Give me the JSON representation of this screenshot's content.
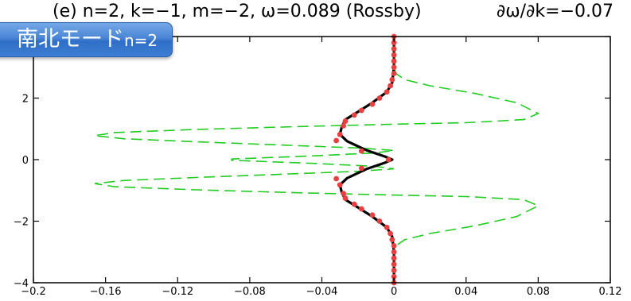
{
  "chart_data": {
    "type": "line",
    "title_left": "(e) n=2, k=−1, m=−2, ω=0.089 (Rossby)",
    "title_right": "∂ω/∂k=−0.07",
    "xlim": [
      -0.2,
      0.12
    ],
    "ylim": [
      -4,
      4
    ],
    "x_ticks": [
      -0.2,
      -0.16,
      -0.12,
      -0.08,
      -0.04,
      0,
      0.04,
      0.08,
      0.12
    ],
    "x_tick_labels": [
      "−0.2",
      "−0.16",
      "−0.12",
      "−0.08",
      "−0.04",
      "0",
      "0.04",
      "0.08",
      "0.12"
    ],
    "y_ticks": [
      -4,
      -2,
      0,
      2,
      4
    ],
    "y_tick_labels": [
      "−4",
      "−2",
      "0",
      "2",
      "4"
    ],
    "grid": false,
    "series": [
      {
        "style": "green-dashed",
        "color": "#22cc22",
        "points": [
          [
            0,
            4.0
          ],
          [
            0,
            3.4
          ],
          [
            0,
            3.0
          ],
          [
            0.001,
            2.8
          ],
          [
            0.006,
            2.6
          ],
          [
            0.02,
            2.4
          ],
          [
            0.045,
            2.15
          ],
          [
            0.068,
            1.85
          ],
          [
            0.08,
            1.5
          ],
          [
            0.072,
            1.3
          ],
          [
            0.04,
            1.2
          ],
          [
            0.0,
            1.15
          ],
          [
            -0.05,
            1.08
          ],
          [
            -0.11,
            0.98
          ],
          [
            -0.155,
            0.88
          ],
          [
            -0.166,
            0.78
          ],
          [
            -0.15,
            0.68
          ],
          [
            -0.11,
            0.58
          ],
          [
            -0.06,
            0.47
          ],
          [
            -0.02,
            0.38
          ],
          [
            0.0,
            0.3
          ],
          [
            -0.01,
            0.22
          ],
          [
            -0.045,
            0.12
          ],
          [
            -0.09,
            0.02
          ],
          [
            -0.09,
            -0.02
          ],
          [
            -0.045,
            -0.12
          ],
          [
            -0.01,
            -0.22
          ],
          [
            0.0,
            -0.3
          ],
          [
            -0.02,
            -0.38
          ],
          [
            -0.06,
            -0.47
          ],
          [
            -0.11,
            -0.58
          ],
          [
            -0.15,
            -0.68
          ],
          [
            -0.166,
            -0.78
          ],
          [
            -0.155,
            -0.88
          ],
          [
            -0.11,
            -0.98
          ],
          [
            -0.05,
            -1.08
          ],
          [
            0.0,
            -1.15
          ],
          [
            0.04,
            -1.2
          ],
          [
            0.072,
            -1.3
          ],
          [
            0.08,
            -1.5
          ],
          [
            0.068,
            -1.85
          ],
          [
            0.045,
            -2.15
          ],
          [
            0.02,
            -2.4
          ],
          [
            0.006,
            -2.6
          ],
          [
            0.001,
            -2.8
          ],
          [
            0,
            -3.0
          ],
          [
            0,
            -3.4
          ],
          [
            0,
            -4.0
          ]
        ]
      },
      {
        "style": "black-solid",
        "color": "#000000",
        "points": [
          [
            0,
            4.0
          ],
          [
            0,
            3.0
          ],
          [
            -0.001,
            2.5
          ],
          [
            -0.004,
            2.2
          ],
          [
            -0.012,
            1.85
          ],
          [
            -0.02,
            1.55
          ],
          [
            -0.027,
            1.3
          ],
          [
            -0.029,
            1.05
          ],
          [
            -0.03,
            0.82
          ],
          [
            -0.026,
            0.6
          ],
          [
            -0.015,
            0.3
          ],
          [
            -0.005,
            0.1
          ],
          [
            -0.001,
            0.0
          ],
          [
            -0.005,
            -0.1
          ],
          [
            -0.015,
            -0.3
          ],
          [
            -0.026,
            -0.6
          ],
          [
            -0.03,
            -0.82
          ],
          [
            -0.029,
            -1.05
          ],
          [
            -0.027,
            -1.3
          ],
          [
            -0.02,
            -1.55
          ],
          [
            -0.012,
            -1.85
          ],
          [
            -0.004,
            -2.2
          ],
          [
            -0.001,
            -2.5
          ],
          [
            0,
            -3.0
          ],
          [
            0,
            -4.0
          ]
        ]
      },
      {
        "style": "red-markers",
        "color": "#e84040",
        "points": [
          [
            0,
            4.0
          ],
          [
            0,
            3.8
          ],
          [
            0,
            3.6
          ],
          [
            0,
            3.4
          ],
          [
            0,
            3.2
          ],
          [
            0,
            3.0
          ],
          [
            0,
            2.8
          ],
          [
            -0.001,
            2.6
          ],
          [
            -0.002,
            2.4
          ],
          [
            -0.004,
            2.2
          ],
          [
            -0.008,
            2.0
          ],
          [
            -0.012,
            1.8
          ],
          [
            -0.018,
            1.6
          ],
          [
            -0.022,
            1.45
          ],
          [
            -0.027,
            1.25
          ],
          [
            -0.028,
            1.1
          ],
          [
            -0.03,
            0.82
          ],
          [
            -0.032,
            0.62
          ],
          [
            -0.018,
            0.28
          ],
          [
            -0.003,
            0.0
          ],
          [
            -0.018,
            -0.28
          ],
          [
            -0.032,
            -0.62
          ],
          [
            -0.03,
            -0.82
          ],
          [
            -0.028,
            -1.1
          ],
          [
            -0.027,
            -1.25
          ],
          [
            -0.022,
            -1.45
          ],
          [
            -0.018,
            -1.6
          ],
          [
            -0.012,
            -1.8
          ],
          [
            -0.008,
            -2.0
          ],
          [
            -0.004,
            -2.2
          ],
          [
            -0.002,
            -2.4
          ],
          [
            -0.001,
            -2.6
          ],
          [
            0,
            -2.8
          ],
          [
            0,
            -3.0
          ],
          [
            0,
            -3.2
          ],
          [
            0,
            -3.4
          ],
          [
            0,
            -3.6
          ],
          [
            0,
            -3.8
          ],
          [
            0,
            -4.0
          ]
        ]
      }
    ]
  },
  "badge": {
    "main": "南北モード",
    "sub": "n=2"
  }
}
